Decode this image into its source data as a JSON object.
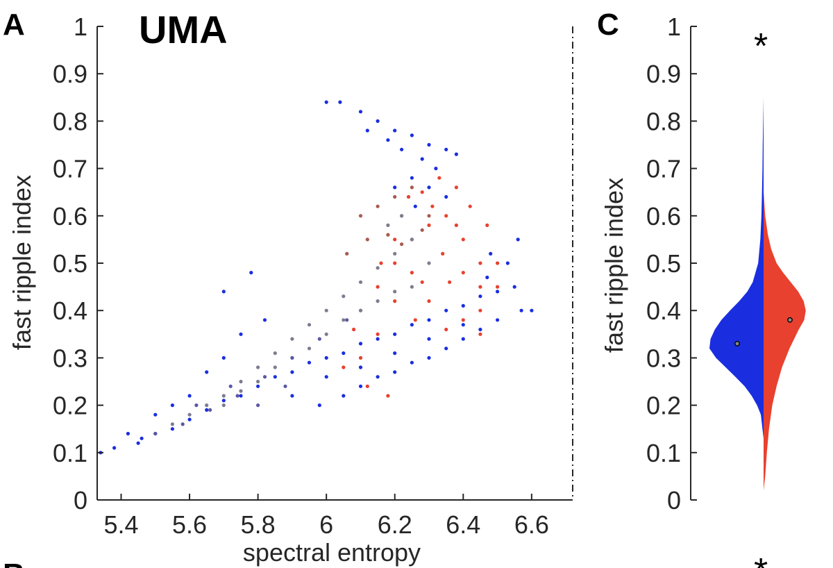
{
  "panels": {
    "a_label": "A",
    "c_label": "C",
    "partial_lower_label": "B",
    "partial_lower_star": "*"
  },
  "chart_data": [
    {
      "id": "A",
      "type": "scatter",
      "title": "UMA",
      "xlabel": "spectral entropy",
      "ylabel": "fast ripple index",
      "xlim": [
        5.33,
        6.72
      ],
      "ylim": [
        0,
        1
      ],
      "xticks": [
        5.4,
        5.6,
        5.8,
        6,
        6.2,
        6.4,
        6.6
      ],
      "xtick_labels": [
        "5.4",
        "5.6",
        "5.8",
        "6",
        "6.2",
        "6.4",
        "6.6"
      ],
      "yticks": [
        0,
        0.1,
        0.2,
        0.3,
        0.4,
        0.5,
        0.6,
        0.7,
        0.8,
        0.9,
        1
      ],
      "ytick_labels": [
        "0",
        "0.1",
        "0.2",
        "0.3",
        "0.4",
        "0.5",
        "0.6",
        "0.7",
        "0.8",
        "0.9",
        "1"
      ],
      "colors": {
        "blue": "#1a2ee0",
        "red": "#e8412f",
        "gray": "#7b7d8f",
        "brown": "#a85a4e",
        "purple": "#5a57a8"
      },
      "series": [
        {
          "name": "blue",
          "color": "#1a2ee0",
          "points": [
            [
              5.34,
              0.1
            ],
            [
              5.38,
              0.11
            ],
            [
              5.45,
              0.12
            ],
            [
              5.5,
              0.14
            ],
            [
              5.55,
              0.15
            ],
            [
              5.6,
              0.17
            ],
            [
              5.65,
              0.19
            ],
            [
              5.7,
              0.21
            ],
            [
              5.75,
              0.22
            ],
            [
              5.8,
              0.24
            ],
            [
              5.85,
              0.26
            ],
            [
              5.9,
              0.27
            ],
            [
              5.95,
              0.29
            ],
            [
              6.0,
              0.3
            ],
            [
              6.05,
              0.31
            ],
            [
              6.1,
              0.33
            ],
            [
              6.15,
              0.34
            ],
            [
              6.2,
              0.35
            ],
            [
              6.25,
              0.37
            ],
            [
              6.3,
              0.38
            ],
            [
              6.35,
              0.4
            ],
            [
              6.4,
              0.41
            ],
            [
              6.45,
              0.43
            ],
            [
              6.5,
              0.44
            ],
            [
              6.55,
              0.45
            ],
            [
              6.57,
              0.4
            ],
            [
              5.98,
              0.2
            ],
            [
              6.05,
              0.22
            ],
            [
              6.1,
              0.24
            ],
            [
              6.15,
              0.26
            ],
            [
              6.2,
              0.27
            ],
            [
              6.25,
              0.29
            ],
            [
              6.3,
              0.3
            ],
            [
              6.35,
              0.32
            ],
            [
              6.4,
              0.34
            ],
            [
              6.45,
              0.36
            ],
            [
              6.5,
              0.38
            ],
            [
              5.9,
              0.22
            ],
            [
              6.0,
              0.26
            ],
            [
              6.1,
              0.28
            ],
            [
              6.2,
              0.31
            ],
            [
              6.3,
              0.34
            ],
            [
              6.4,
              0.37
            ],
            [
              6.47,
              0.47
            ],
            [
              6.48,
              0.52
            ],
            [
              6.53,
              0.5
            ],
            [
              6.56,
              0.55
            ],
            [
              6.0,
              0.84
            ],
            [
              6.04,
              0.84
            ],
            [
              6.1,
              0.82
            ],
            [
              6.15,
              0.8
            ],
            [
              6.2,
              0.78
            ],
            [
              6.25,
              0.77
            ],
            [
              6.3,
              0.75
            ],
            [
              6.35,
              0.74
            ],
            [
              6.38,
              0.73
            ],
            [
              6.12,
              0.78
            ],
            [
              6.18,
              0.76
            ],
            [
              6.22,
              0.74
            ],
            [
              6.28,
              0.72
            ],
            [
              6.32,
              0.7
            ],
            [
              6.25,
              0.68
            ],
            [
              6.2,
              0.66
            ],
            [
              6.3,
              0.66
            ],
            [
              6.35,
              0.64
            ],
            [
              6.26,
              0.62
            ],
            [
              5.7,
              0.44
            ],
            [
              5.78,
              0.48
            ],
            [
              5.82,
              0.38
            ],
            [
              5.75,
              0.35
            ],
            [
              5.65,
              0.27
            ],
            [
              5.7,
              0.3
            ],
            [
              5.6,
              0.22
            ],
            [
              5.55,
              0.2
            ],
            [
              5.5,
              0.18
            ],
            [
              5.46,
              0.13
            ],
            [
              5.42,
              0.14
            ],
            [
              6.6,
              0.4
            ]
          ]
        },
        {
          "name": "red",
          "color": "#e8412f",
          "points": [
            [
              6.1,
              0.4
            ],
            [
              6.15,
              0.45
            ],
            [
              6.2,
              0.5
            ],
            [
              6.25,
              0.55
            ],
            [
              6.3,
              0.58
            ],
            [
              6.35,
              0.6
            ],
            [
              6.4,
              0.55
            ],
            [
              6.45,
              0.5
            ],
            [
              6.5,
              0.45
            ],
            [
              6.45,
              0.4
            ],
            [
              6.4,
              0.38
            ],
            [
              6.35,
              0.36
            ],
            [
              6.3,
              0.42
            ],
            [
              6.25,
              0.48
            ],
            [
              6.2,
              0.42
            ],
            [
              6.15,
              0.35
            ],
            [
              6.1,
              0.3
            ],
            [
              6.05,
              0.28
            ],
            [
              6.12,
              0.24
            ],
            [
              6.18,
              0.22
            ],
            [
              6.22,
              0.6
            ],
            [
              6.28,
              0.65
            ],
            [
              6.33,
              0.68
            ],
            [
              6.38,
              0.66
            ],
            [
              6.42,
              0.62
            ],
            [
              6.47,
              0.58
            ],
            [
              6.5,
              0.5
            ],
            [
              6.45,
              0.45
            ],
            [
              6.34,
              0.52
            ],
            [
              6.26,
              0.38
            ],
            [
              6.36,
              0.46
            ],
            [
              6.2,
              0.55
            ],
            [
              6.28,
              0.46
            ],
            [
              6.16,
              0.5
            ],
            [
              6.08,
              0.36
            ],
            [
              6.31,
              0.62
            ],
            [
              6.4,
              0.48
            ],
            [
              6.45,
              0.35
            ],
            [
              6.38,
              0.58
            ],
            [
              6.24,
              0.64
            ]
          ]
        },
        {
          "name": "gray",
          "color": "#7b7d8f",
          "points": [
            [
              5.55,
              0.16
            ],
            [
              5.6,
              0.18
            ],
            [
              5.65,
              0.2
            ],
            [
              5.7,
              0.22
            ],
            [
              5.75,
              0.25
            ],
            [
              5.8,
              0.28
            ],
            [
              5.85,
              0.31
            ],
            [
              5.9,
              0.34
            ],
            [
              5.95,
              0.37
            ],
            [
              6.0,
              0.4
            ],
            [
              6.05,
              0.43
            ],
            [
              6.1,
              0.46
            ],
            [
              6.15,
              0.49
            ],
            [
              6.2,
              0.52
            ],
            [
              6.25,
              0.55
            ],
            [
              6.3,
              0.5
            ],
            [
              6.25,
              0.45
            ],
            [
              6.2,
              0.44
            ],
            [
              6.15,
              0.42
            ],
            [
              6.1,
              0.4
            ],
            [
              6.05,
              0.38
            ],
            [
              6.0,
              0.35
            ],
            [
              5.95,
              0.32
            ],
            [
              5.9,
              0.3
            ],
            [
              5.85,
              0.28
            ],
            [
              5.8,
              0.25
            ],
            [
              5.75,
              0.23
            ],
            [
              5.7,
              0.2
            ],
            [
              6.18,
              0.58
            ],
            [
              6.22,
              0.6
            ]
          ]
        },
        {
          "name": "brown",
          "color": "#a85a4e",
          "points": [
            [
              6.1,
              0.6
            ],
            [
              6.15,
              0.62
            ],
            [
              6.2,
              0.64
            ],
            [
              6.25,
              0.66
            ],
            [
              6.3,
              0.6
            ],
            [
              6.18,
              0.56
            ],
            [
              6.12,
              0.55
            ],
            [
              6.06,
              0.52
            ],
            [
              6.22,
              0.54
            ],
            [
              6.28,
              0.57
            ]
          ]
        },
        {
          "name": "purple",
          "color": "#5a57a8",
          "points": [
            [
              5.5,
              0.14
            ],
            [
              5.58,
              0.16
            ],
            [
              5.66,
              0.19
            ],
            [
              5.74,
              0.22
            ],
            [
              5.82,
              0.26
            ],
            [
              5.9,
              0.3
            ],
            [
              5.98,
              0.34
            ],
            [
              6.06,
              0.38
            ],
            [
              5.62,
              0.2
            ],
            [
              5.72,
              0.24
            ],
            [
              5.8,
              0.2
            ],
            [
              5.88,
              0.24
            ]
          ]
        }
      ],
      "annotations": [
        "dash-dot vertical line at right border"
      ]
    },
    {
      "id": "C",
      "type": "violin",
      "title": "",
      "xlabel": "",
      "ylabel": "fast ripple index",
      "ylim": [
        0,
        1
      ],
      "yticks": [
        0,
        0.1,
        0.2,
        0.3,
        0.4,
        0.5,
        0.6,
        0.7,
        0.8,
        0.9,
        1
      ],
      "ytick_labels": [
        "0",
        "0.1",
        "0.2",
        "0.3",
        "0.4",
        "0.5",
        "0.6",
        "0.7",
        "0.8",
        "0.9",
        "1"
      ],
      "significance_marker": "*",
      "series": [
        {
          "name": "left half",
          "color": "#1a2ee0",
          "median": 0.33,
          "density": [
            [
              0.13,
              0.0
            ],
            [
              0.15,
              0.02
            ],
            [
              0.18,
              0.05
            ],
            [
              0.2,
              0.12
            ],
            [
              0.22,
              0.22
            ],
            [
              0.24,
              0.35
            ],
            [
              0.26,
              0.52
            ],
            [
              0.28,
              0.7
            ],
            [
              0.3,
              0.88
            ],
            [
              0.32,
              1.0
            ],
            [
              0.34,
              0.98
            ],
            [
              0.36,
              0.9
            ],
            [
              0.38,
              0.78
            ],
            [
              0.4,
              0.62
            ],
            [
              0.42,
              0.45
            ],
            [
              0.44,
              0.3
            ],
            [
              0.46,
              0.2
            ],
            [
              0.5,
              0.1
            ],
            [
              0.55,
              0.06
            ],
            [
              0.6,
              0.04
            ],
            [
              0.65,
              0.03
            ],
            [
              0.7,
              0.02
            ],
            [
              0.75,
              0.015
            ],
            [
              0.8,
              0.008
            ],
            [
              0.85,
              0.0
            ]
          ]
        },
        {
          "name": "right half",
          "color": "#e8412f",
          "median": 0.38,
          "density": [
            [
              0.02,
              0.0
            ],
            [
              0.05,
              0.03
            ],
            [
              0.1,
              0.06
            ],
            [
              0.15,
              0.1
            ],
            [
              0.2,
              0.16
            ],
            [
              0.24,
              0.24
            ],
            [
              0.28,
              0.34
            ],
            [
              0.32,
              0.48
            ],
            [
              0.36,
              0.65
            ],
            [
              0.38,
              0.75
            ],
            [
              0.4,
              0.78
            ],
            [
              0.42,
              0.74
            ],
            [
              0.44,
              0.64
            ],
            [
              0.46,
              0.5
            ],
            [
              0.48,
              0.36
            ],
            [
              0.5,
              0.24
            ],
            [
              0.53,
              0.14
            ],
            [
              0.56,
              0.08
            ],
            [
              0.6,
              0.03
            ],
            [
              0.65,
              0.0
            ]
          ]
        }
      ]
    }
  ]
}
